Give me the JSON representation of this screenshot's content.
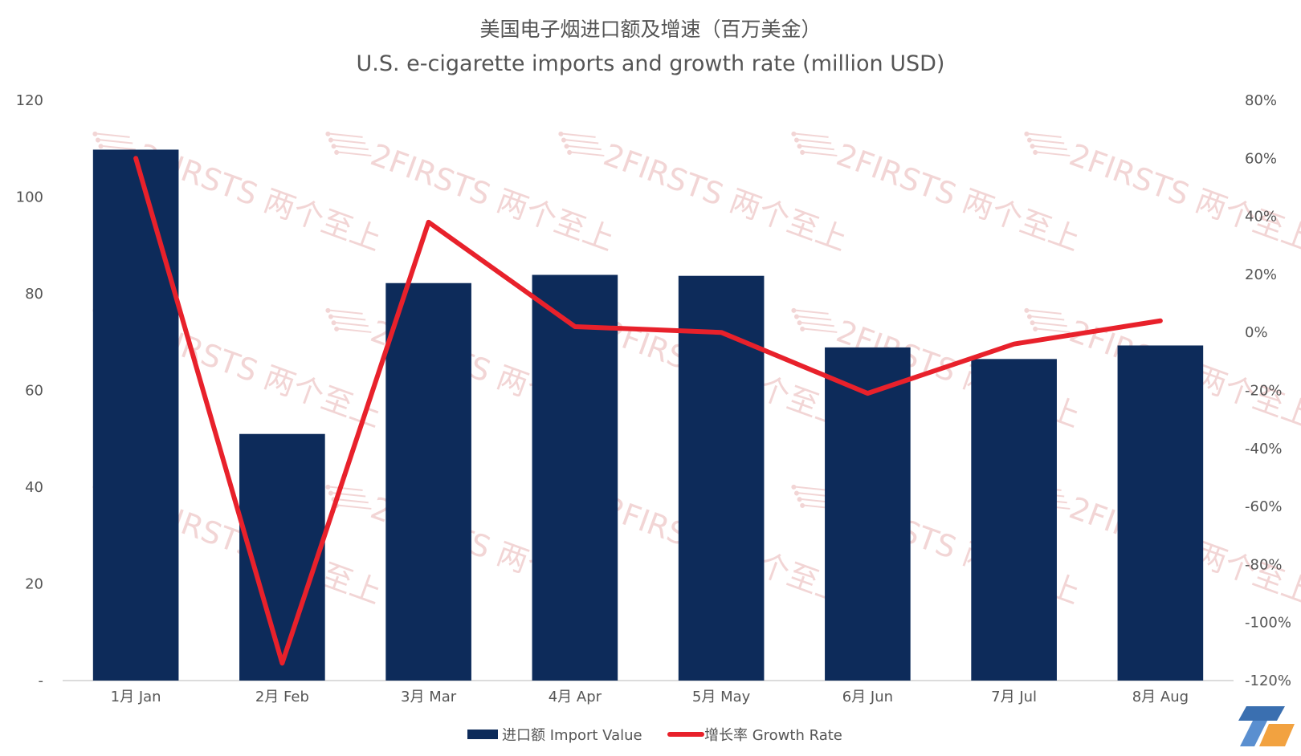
{
  "chart_data": {
    "type": "bar",
    "title": "美国电子烟进口额及增速（百万美金）",
    "subtitle": "U.S. e-cigarette imports and growth rate (million USD)",
    "categories": [
      "1月 Jan",
      "2月 Feb",
      "3月 Mar",
      "4月 Apr",
      "5月 May",
      "6月 Jun",
      "7月 Jul",
      "8月 Aug"
    ],
    "series": [
      {
        "name": "进口额 Import Value",
        "type": "bar",
        "axis": "left",
        "color": "#0d2b5a",
        "values": [
          109.8,
          51.0,
          82.2,
          83.9,
          83.7,
          68.9,
          66.5,
          69.3
        ]
      },
      {
        "name": "增长率 Growth Rate",
        "type": "line",
        "axis": "right",
        "color": "#e8212b",
        "values": [
          60,
          -114,
          38,
          2,
          0,
          -21,
          -4,
          4
        ]
      }
    ],
    "y_left": {
      "min": 0,
      "max": 120,
      "step": 20,
      "tick_labels": [
        "-",
        "20",
        "40",
        "60",
        "80",
        "100",
        "120"
      ]
    },
    "y_right": {
      "min": -120,
      "max": 80,
      "step": 20,
      "tick_labels": [
        "-120%",
        "-100%",
        "-80%",
        "-60%",
        "-40%",
        "-20%",
        "0%",
        "20%",
        "40%",
        "60%",
        "80%"
      ]
    },
    "grid": false,
    "legend": "bottom-center",
    "watermark": "2FIRSTS 两个至上"
  }
}
